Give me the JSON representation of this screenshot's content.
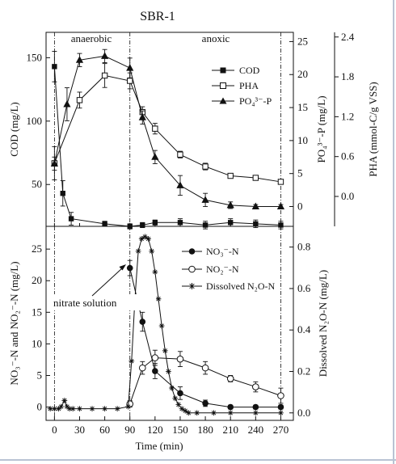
{
  "title": "SBR-1",
  "phase_labels": {
    "anaerobic": "anaerobic",
    "anoxic": "anoxic"
  },
  "annotation": "nitrate solution",
  "xlabel": "Time (min)",
  "x_ticks": [
    0,
    30,
    60,
    90,
    120,
    150,
    180,
    210,
    240,
    270
  ],
  "colors": {
    "ink": "#111111",
    "frame": "#b9c3d3"
  },
  "chart_data": [
    {
      "type": "line",
      "panel": "top",
      "xlim": [
        -10,
        285
      ],
      "axes": {
        "cod": {
          "label": "COD (mg/L)",
          "ylim": [
            17,
            170
          ],
          "ticks": [
            50,
            100,
            150
          ]
        },
        "po4": {
          "label": "PO₄³⁻-P (mg/L)",
          "ylim": [
            -3.0,
            26.4
          ],
          "ticks": [
            0,
            5,
            10,
            15,
            20,
            25
          ]
        },
        "pha": {
          "label": "PHA (mmol-C/g VSS)",
          "ylim": [
            -0.45,
            2.47
          ],
          "ticks": [
            "0.0",
            "0.6",
            "1.2",
            "1.8",
            "2.4"
          ]
        }
      },
      "phase_dividers": [
        0,
        90,
        270
      ],
      "series": [
        {
          "name": "COD",
          "axis": "cod",
          "marker": "filled-square",
          "x": [
            0,
            10,
            20,
            60,
            90,
            105,
            120,
            150,
            180,
            210,
            240,
            270
          ],
          "y": [
            143,
            43,
            23,
            19,
            17,
            18,
            20,
            20,
            18,
            20,
            19,
            18
          ],
          "err": [
            12,
            10,
            5,
            2,
            2,
            2,
            2,
            3,
            3,
            3,
            3,
            3
          ]
        },
        {
          "name": "PHA",
          "axis": "pha",
          "marker": "open-square",
          "x": [
            0,
            30,
            60,
            90,
            105,
            120,
            150,
            180,
            210,
            240,
            270
          ],
          "y": [
            0.5,
            1.45,
            1.82,
            1.74,
            1.27,
            1.02,
            0.63,
            0.45,
            0.31,
            0.28,
            0.22
          ],
          "err": [
            0.25,
            0.12,
            0.18,
            0.12,
            0.08,
            0.08,
            0.05,
            0.05,
            0.03,
            0.03,
            0.03
          ]
        },
        {
          "name": "PO₄³⁻-P",
          "axis": "po4",
          "marker": "filled-triangle",
          "x": [
            0,
            15,
            30,
            60,
            90,
            105,
            120,
            150,
            180,
            210,
            240,
            270
          ],
          "y": [
            6.5,
            15.5,
            22.2,
            22.8,
            21.0,
            13.5,
            7.5,
            3.2,
            1.0,
            0.2,
            0.0,
            0.0
          ],
          "err": [
            1.0,
            2.5,
            1.0,
            1.0,
            1.5,
            1.0,
            1.0,
            1.5,
            1.0,
            0.5,
            0.3,
            0.3
          ]
        }
      ]
    },
    {
      "type": "line",
      "panel": "bottom",
      "xlim": [
        -10,
        285
      ],
      "axes": {
        "nox": {
          "label": "NO₃⁻-N and NO₂⁻-N (mg/L)",
          "ylim": [
            -2.1,
            28.6
          ],
          "ticks": [
            0,
            5,
            10,
            15,
            20,
            25
          ]
        },
        "n2o": {
          "label": "Dissolved N₂O-N (mg/L)",
          "ylim": [
            -0.036,
            0.9
          ],
          "ticks": [
            "0.0",
            "0.2",
            "0.4",
            "0.6",
            "0.8"
          ]
        }
      },
      "phase_dividers": [
        0,
        90,
        270
      ],
      "series": [
        {
          "name": "NO₃⁻-N",
          "axis": "nox",
          "marker": "filled-circle",
          "x": [
            90,
            105,
            120,
            150,
            180,
            210,
            240,
            270
          ],
          "y": [
            22.0,
            13.5,
            5.7,
            2.2,
            0.6,
            0.0,
            0.0,
            0.0
          ],
          "err": [
            1.2,
            1.5,
            1.2,
            1.0,
            0.5,
            0.3,
            0.3,
            0.3
          ]
        },
        {
          "name": "NO₂⁻-N",
          "axis": "nox",
          "marker": "open-circle",
          "x": [
            90,
            105,
            120,
            150,
            180,
            210,
            240,
            270
          ],
          "y": [
            0.5,
            6.2,
            7.8,
            7.6,
            6.2,
            4.5,
            3.2,
            1.8
          ],
          "err": [
            0.5,
            1.0,
            1.2,
            1.2,
            1.0,
            0.5,
            0.8,
            1.2
          ]
        },
        {
          "name": "Dissolved N₂O-N",
          "axis": "n2o",
          "marker": "asterisk",
          "x": [
            -5,
            0,
            5,
            8,
            12,
            15,
            18,
            22,
            30,
            45,
            60,
            75,
            88,
            92,
            96,
            100,
            104,
            108,
            112,
            116,
            120,
            124,
            128,
            132,
            136,
            140,
            144,
            148,
            152,
            156,
            160,
            170,
            190,
            210,
            240,
            270
          ],
          "y": [
            0.02,
            0.02,
            0.02,
            0.03,
            0.06,
            0.03,
            0.02,
            0.02,
            0.02,
            0.02,
            0.02,
            0.02,
            0.03,
            0.25,
            0.55,
            0.78,
            0.84,
            0.85,
            0.84,
            0.78,
            0.68,
            0.55,
            0.42,
            0.3,
            0.2,
            0.12,
            0.07,
            0.04,
            0.02,
            0.01,
            0.0,
            0.0,
            0.0,
            0.0,
            0.0,
            0.0
          ]
        }
      ]
    }
  ]
}
